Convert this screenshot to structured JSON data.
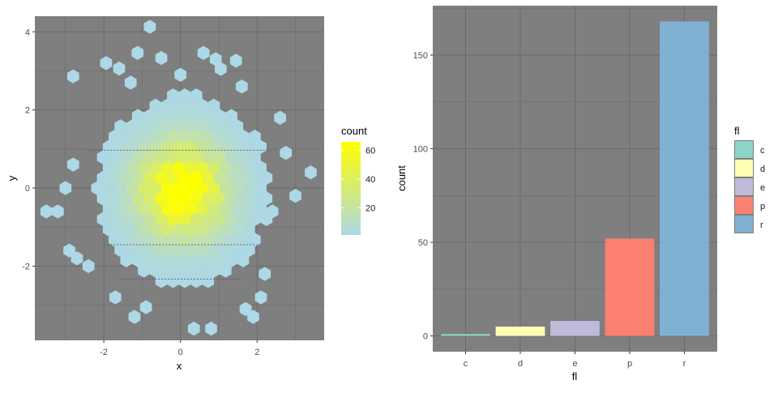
{
  "chart_data": [
    {
      "type": "hexbin",
      "xlabel": "x",
      "ylabel": "y",
      "xlim": [
        -3.8,
        3.75
      ],
      "ylim": [
        -3.9,
        4.4
      ],
      "x_ticks": [
        -2,
        0,
        2
      ],
      "y_ticks": [
        -2,
        0,
        2,
        4
      ],
      "x_tick_labels": [
        "-2",
        "0",
        "2"
      ],
      "y_tick_labels": [
        "-2",
        "0",
        "2",
        "4"
      ],
      "hex_radius": 0.176,
      "color_low": "#add8e6",
      "color_high": "#ffff00",
      "panel_background": "#7f7f7f",
      "grid": true,
      "legend": {
        "title": "count",
        "position": "right",
        "min": 1,
        "max": 66,
        "breaks": [
          20,
          40,
          60
        ],
        "labels": [
          "20",
          "40",
          "60"
        ]
      },
      "dashed_lines_y": [
        0.97,
        -1.45,
        -2.33
      ],
      "outliers": [
        [
          -0.8,
          4.13
        ],
        [
          -1.12,
          3.46
        ],
        [
          -0.5,
          3.33
        ],
        [
          -1.94,
          3.2
        ],
        [
          -1.6,
          3.06
        ],
        [
          -2.8,
          2.86
        ],
        [
          0.6,
          3.46
        ],
        [
          0.92,
          3.3
        ],
        [
          1.45,
          3.26
        ],
        [
          0.0,
          2.9
        ],
        [
          1.05,
          3.05
        ],
        [
          -3.0,
          0.0
        ],
        [
          -3.2,
          -0.6
        ],
        [
          -3.5,
          -0.6
        ],
        [
          -2.4,
          -2.0
        ],
        [
          3.4,
          0.4
        ],
        [
          2.6,
          1.8
        ],
        [
          2.4,
          -0.6
        ],
        [
          2.2,
          -2.2
        ],
        [
          2.1,
          -2.8
        ],
        [
          -1.7,
          -2.8
        ],
        [
          -1.2,
          -3.3
        ],
        [
          -0.9,
          -3.05
        ],
        [
          0.35,
          -3.6
        ],
        [
          0.8,
          -3.6
        ],
        [
          1.7,
          -3.1
        ],
        [
          1.9,
          -3.3
        ],
        [
          -2.9,
          -1.6
        ],
        [
          -2.7,
          -1.8
        ],
        [
          3.0,
          -0.2
        ],
        [
          -2.8,
          0.6
        ],
        [
          2.75,
          0.9
        ],
        [
          1.6,
          2.6
        ],
        [
          -1.3,
          2.7
        ]
      ]
    },
    {
      "type": "bar",
      "xlabel": "fl",
      "ylabel": "count",
      "categories": [
        "c",
        "d",
        "e",
        "p",
        "r"
      ],
      "values": [
        1,
        5,
        8,
        52,
        168
      ],
      "colors": [
        "#8dd3c7",
        "#ffffb3",
        "#bebada",
        "#fb8072",
        "#80b1d3"
      ],
      "ylim": [
        -8.4,
        176.4
      ],
      "y_ticks": [
        0,
        50,
        100,
        150
      ],
      "y_tick_labels": [
        "0",
        "50",
        "100",
        "150"
      ],
      "panel_background": "#7f7f7f",
      "grid": true,
      "legend": {
        "title": "fl",
        "position": "right",
        "entries": [
          "c",
          "d",
          "e",
          "p",
          "r"
        ]
      }
    }
  ]
}
